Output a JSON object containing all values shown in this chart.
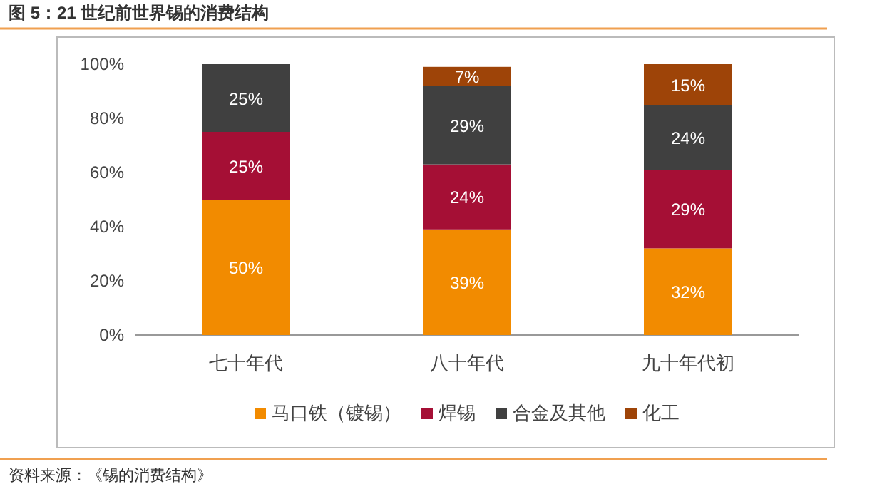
{
  "chart_data": {
    "type": "bar",
    "stacked": true,
    "title": "图 5：21 世纪前世界锡的消费结构",
    "categories": [
      "七十年代",
      "八十年代",
      "九十年代初"
    ],
    "series": [
      {
        "name": "马口铁（镀锡）",
        "color": "#f28b00",
        "values": [
          50,
          39,
          32
        ],
        "value_labels": [
          "50%",
          "39%",
          "32%"
        ]
      },
      {
        "name": "焊锡",
        "color": "#a50f35",
        "values": [
          25,
          24,
          29
        ],
        "value_labels": [
          "25%",
          "24%",
          "29%"
        ]
      },
      {
        "name": "合金及其他",
        "color": "#404040",
        "values": [
          25,
          29,
          24
        ],
        "value_labels": [
          "25%",
          "29%",
          "24%"
        ]
      },
      {
        "name": "化工",
        "color": "#9e4408",
        "values": [
          null,
          7,
          15
        ],
        "value_labels": [
          null,
          "7%",
          "15%"
        ]
      }
    ],
    "ylim": [
      0,
      100
    ],
    "yticks": [
      {
        "value": 0,
        "label": "0%"
      },
      {
        "value": 20,
        "label": "20%"
      },
      {
        "value": 40,
        "label": "40%"
      },
      {
        "value": 60,
        "label": "60%"
      },
      {
        "value": 80,
        "label": "80%"
      },
      {
        "value": 100,
        "label": "100%"
      }
    ],
    "grid": false,
    "legend": "bottom",
    "annotations": [
      "资料来源：《锡的消费结构》"
    ]
  }
}
